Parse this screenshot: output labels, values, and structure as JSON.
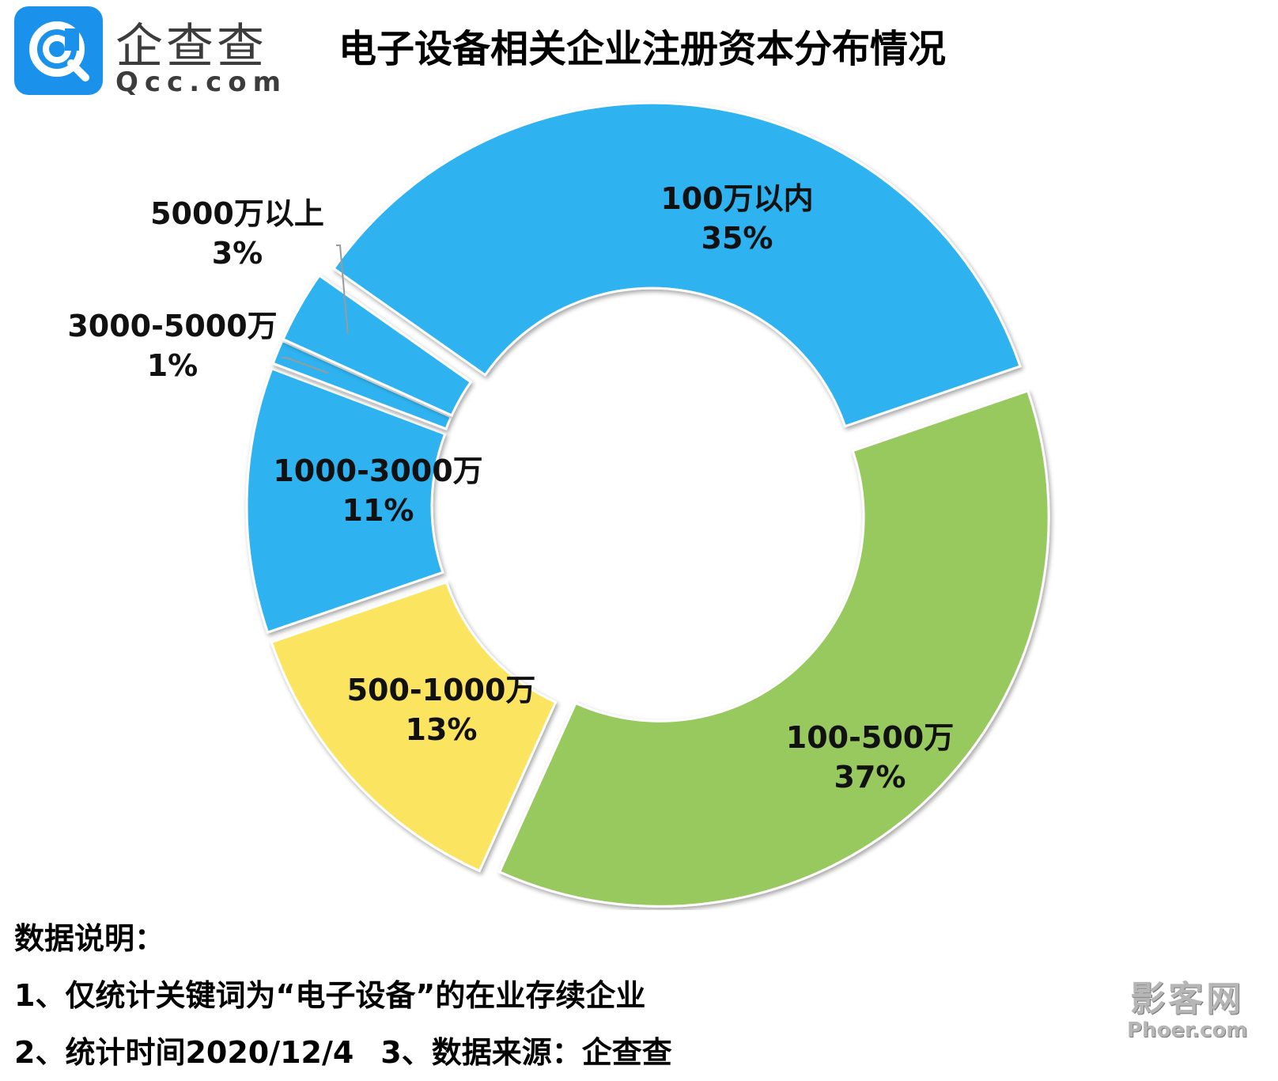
{
  "brand": {
    "name": "企查查",
    "domain": "Qcc.com",
    "logo_icon": "qcc-logo-icon",
    "logo_color": "#1a92ec"
  },
  "chart_data": {
    "type": "pie",
    "variant": "donut",
    "title": "电子设备相关企业注册资本分布情况",
    "slices": [
      {
        "label": "100万以内",
        "value": 35,
        "value_label": "35%",
        "color": "#2eb3f0"
      },
      {
        "label": "100-500万",
        "value": 37,
        "value_label": "37%",
        "color": "#98c95e"
      },
      {
        "label": "500-1000万",
        "value": 13,
        "value_label": "13%",
        "color": "#fbe461"
      },
      {
        "label": "1000-3000万",
        "value": 11,
        "value_label": "11%",
        "color": "#2eb3f0"
      },
      {
        "label": "3000-5000万",
        "value": 1,
        "value_label": "1%",
        "color": "#2eb3f0"
      },
      {
        "label": "5000万以上",
        "value": 3,
        "value_label": "3%",
        "color": "#2eb3f0"
      }
    ],
    "exploded": true
  },
  "notes": {
    "heading": "数据说明：",
    "line1": "1、仅统计关键词为“电子设备”的在业存续企业",
    "line2a": "2、统计时间2020/12/4",
    "line2b": "3、数据来源：企查查"
  },
  "watermark": {
    "line1": "影客网",
    "line2": "Phoer.com"
  }
}
